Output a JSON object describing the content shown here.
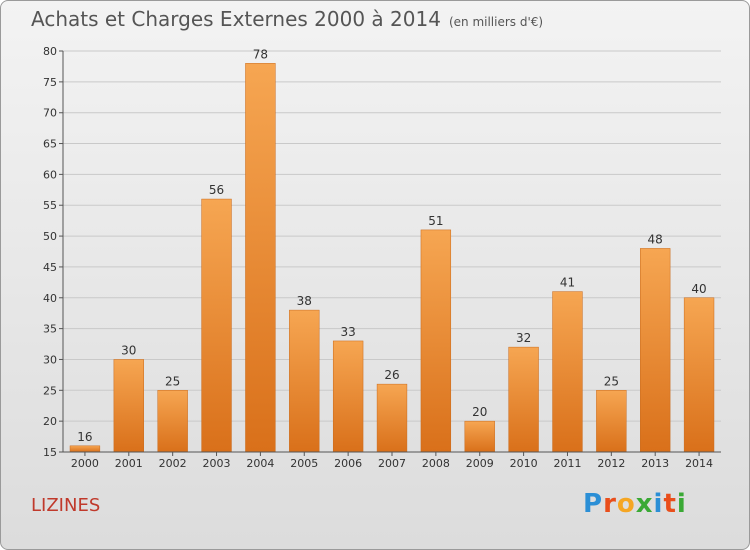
{
  "header": {
    "title": "Achats et Charges Externes 2000 à 2014",
    "unit": "(en milliers d'€)"
  },
  "footer": {
    "commune": "LIZINES",
    "brand": {
      "letters": [
        "P",
        "r",
        "o",
        "x",
        "i",
        "t",
        "i"
      ],
      "colors": [
        "#2b8fd6",
        "#e94e1b",
        "#f5a623",
        "#3aa935",
        "#2b8fd6",
        "#e94e1b",
        "#3aa935"
      ]
    }
  },
  "chart_data": {
    "type": "bar",
    "title": "Achats et Charges Externes 2000 à 2014",
    "subtitle": "(en milliers d'€)",
    "categories": [
      "2000",
      "2001",
      "2002",
      "2003",
      "2004",
      "2005",
      "2006",
      "2007",
      "2008",
      "2009",
      "2010",
      "2011",
      "2012",
      "2013",
      "2014"
    ],
    "values": [
      16,
      30,
      25,
      56,
      78,
      38,
      33,
      26,
      51,
      20,
      32,
      41,
      25,
      48,
      40
    ],
    "ylim": [
      15,
      80
    ],
    "yticks": [
      15,
      20,
      25,
      30,
      35,
      40,
      45,
      50,
      55,
      60,
      65,
      70,
      75,
      80
    ],
    "grid": true,
    "bar_color": "#f0912e",
    "data_labels": true
  }
}
